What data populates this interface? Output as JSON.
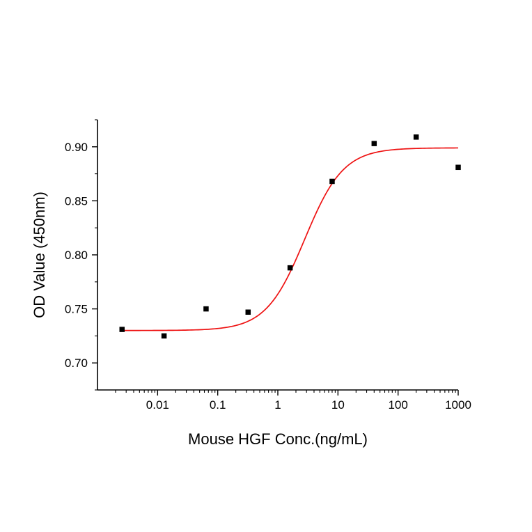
{
  "chart_data": {
    "type": "scatter",
    "title": "",
    "xlabel": "Mouse HGF Conc.(ng/mL)",
    "ylabel": "OD Value (450nm)",
    "x_scale": "log",
    "xlim": [
      0.001,
      1000
    ],
    "ylim": [
      0.675,
      0.925
    ],
    "x_ticks": [
      0.01,
      0.1,
      1,
      10,
      100,
      1000
    ],
    "x_tick_labels": [
      "0.01",
      "0.1",
      "1",
      "10",
      "100",
      "1000"
    ],
    "y_ticks": [
      0.7,
      0.75,
      0.8,
      0.85,
      0.9
    ],
    "y_tick_labels": [
      "0.70",
      "0.75",
      "0.80",
      "0.85",
      "0.90"
    ],
    "points": [
      [
        0.00256,
        0.731
      ],
      [
        0.0128,
        0.725
      ],
      [
        0.064,
        0.75
      ],
      [
        0.32,
        0.747
      ],
      [
        1.6,
        0.788
      ],
      [
        8,
        0.868
      ],
      [
        40,
        0.903
      ],
      [
        200,
        0.909
      ],
      [
        1000,
        0.881
      ]
    ],
    "fit_curve": {
      "model": "4PL",
      "bottom": 0.73,
      "top": 0.899,
      "ec50": 2.8,
      "hill": 1.35,
      "x_start": 0.0026,
      "x_end": 1000
    },
    "marker": {
      "shape": "square",
      "color": "#000000",
      "size": 7.5
    },
    "curve_color": "#ee1111",
    "axis_color": "#000000",
    "grid": false,
    "legend": null
  }
}
